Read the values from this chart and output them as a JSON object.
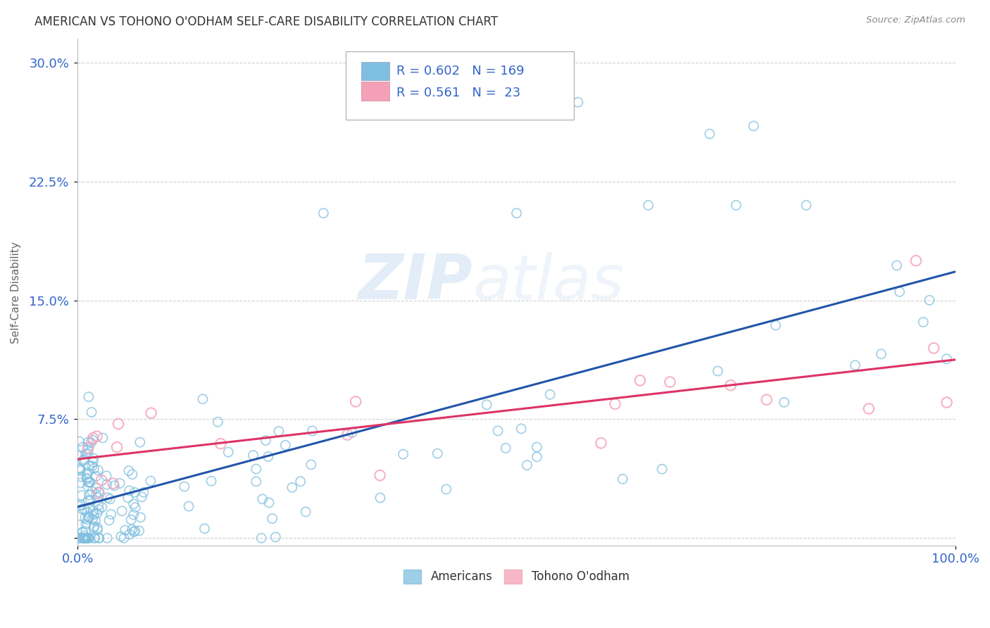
{
  "title": "AMERICAN VS TOHONO O'ODHAM SELF-CARE DISABILITY CORRELATION CHART",
  "source": "Source: ZipAtlas.com",
  "ylabel": "Self-Care Disability",
  "ytick_vals": [
    0.0,
    0.075,
    0.15,
    0.225,
    0.3
  ],
  "ytick_labels": [
    "",
    "7.5%",
    "15.0%",
    "22.5%",
    "30.0%"
  ],
  "blue_color": "#7fbfdf",
  "pink_color": "#f4a0b8",
  "line_blue": "#2255aa",
  "line_pink": "#dd3366",
  "background_color": "#ffffff",
  "grid_color": "#cccccc",
  "watermark_zip": "ZIP",
  "watermark_atlas": "atlas",
  "americans_label": "Americans",
  "tohono_label": "Tohono O'odham",
  "xlim": [
    0.0,
    1.0
  ],
  "ylim": [
    -0.005,
    0.315
  ],
  "title_color": "#333333",
  "source_color": "#888888",
  "tick_color": "#3366cc",
  "ylabel_color": "#666666",
  "legend_r1": "R = 0.602",
  "legend_n1": "N = 169",
  "legend_r2": "R = 0.561",
  "legend_n2": "N =  23"
}
